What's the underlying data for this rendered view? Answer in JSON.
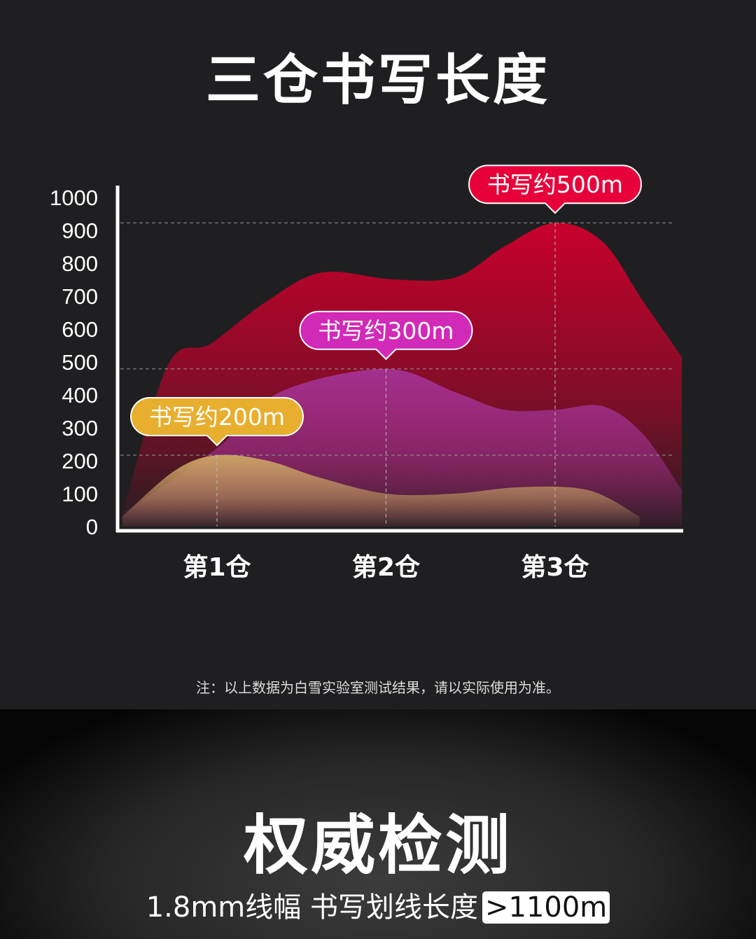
{
  "title": "三仓书写长度",
  "chart_data": {
    "type": "area",
    "title": "三仓书写长度",
    "categories": [
      "第1仓",
      "第2仓",
      "第3仓"
    ],
    "yticks": [
      "0",
      "100",
      "200",
      "300",
      "400",
      "500",
      "600",
      "700",
      "800",
      "900",
      "1000"
    ],
    "ylim": [
      0,
      1000
    ],
    "grid": "dashed guide lines at peaks",
    "series": [
      {
        "color": "#c8002c",
        "callout": "书写约500m",
        "callout_color": "#e8003a",
        "peak_x": 3,
        "points": [
          [
            0.44,
            36
          ],
          [
            0.71,
            491
          ],
          [
            0.96,
            555
          ],
          [
            1.29,
            683
          ],
          [
            1.62,
            772
          ],
          [
            2.04,
            751
          ],
          [
            2.41,
            757
          ],
          [
            2.7,
            851
          ],
          [
            3.0,
            923
          ],
          [
            3.28,
            866
          ],
          [
            3.52,
            685
          ],
          [
            3.75,
            515
          ]
        ]
      },
      {
        "color": "#a2308f",
        "callout": "书写约300m",
        "callout_color": "#d22ab8",
        "peak_x": 2,
        "points": [
          [
            0.44,
            40
          ],
          [
            1.0,
            238
          ],
          [
            1.37,
            408
          ],
          [
            2.0,
            479
          ],
          [
            2.41,
            408
          ],
          [
            2.7,
            355
          ],
          [
            3.0,
            355
          ],
          [
            3.28,
            366
          ],
          [
            3.52,
            281
          ],
          [
            3.75,
            110
          ]
        ]
      },
      {
        "color": "#c9a063",
        "callout": "书写约200m",
        "callout_color": "#e8ae2e",
        "peak_x": 1,
        "points": [
          [
            0.44,
            30
          ],
          [
            0.75,
            170
          ],
          [
            1.0,
            217
          ],
          [
            1.3,
            200
          ],
          [
            1.6,
            150
          ],
          [
            2.0,
            100
          ],
          [
            2.4,
            100
          ],
          [
            2.8,
            120
          ],
          [
            3.2,
            110
          ],
          [
            3.5,
            30
          ]
        ]
      }
    ]
  },
  "note": "注：以上数据为白雪实验室测试结果，请以实际使用为准。",
  "bottom": {
    "title": "权威检测",
    "subtitle": "1.8mm线幅 书写划线长度",
    "badge": ">1100m"
  }
}
